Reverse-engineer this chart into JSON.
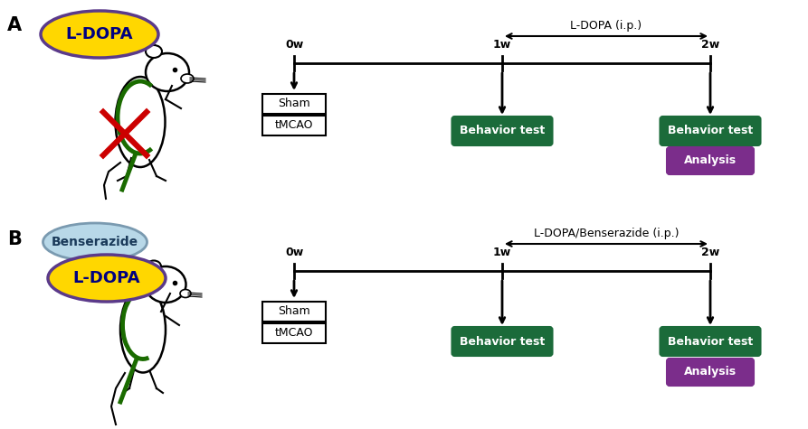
{
  "fig_width": 8.93,
  "fig_height": 4.75,
  "bg_color": "#ffffff",
  "ldopa_ellipse": {
    "text": "L-DOPA",
    "facecolor": "#FFD700",
    "edgecolor": "#5B3A8A",
    "text_color": "#000080",
    "fontsize": 13,
    "fontweight": "bold"
  },
  "benserazide_ellipse": {
    "text": "Benserazide",
    "facecolor": "#B8D8E8",
    "edgecolor": "#7A9AB0",
    "text_color": "#1A3A5A",
    "fontsize": 10,
    "fontweight": "bold"
  },
  "behavior_box": {
    "text": "Behavior test",
    "facecolor": "#1B6B3A",
    "edgecolor": "#1B6B3A",
    "text_color": "#ffffff",
    "fontsize": 9,
    "fontweight": "bold"
  },
  "analysis_box": {
    "text": "Analysis",
    "facecolor": "#7B2D8B",
    "edgecolor": "#7B2D8B",
    "text_color": "#ffffff",
    "fontsize": 9,
    "fontweight": "bold"
  },
  "sham_text": "Sham",
  "tmcao_text": "tMCAO",
  "ldopa_ip_label": "L-DOPA (i.p.)",
  "ldopa_benserazide_ip_label": "L-DOPA/Benserazide (i.p.)",
  "label_0w": "0w",
  "label_1w": "1w",
  "label_2w": "2w",
  "green_color": "#1A6B00",
  "red_color": "#CC0000"
}
